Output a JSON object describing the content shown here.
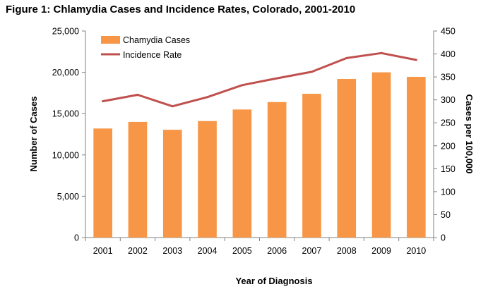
{
  "chart_data": {
    "type": "bar",
    "title": "Figure 1: Chlamydia Cases and Incidence Rates, Colorado, 2001-2010",
    "xlabel": "Year of Diagnosis",
    "ylabel": "Number of Cases",
    "y2label": "Cases per 100,000",
    "categories": [
      "2001",
      "2002",
      "2003",
      "2004",
      "2005",
      "2006",
      "2007",
      "2008",
      "2009",
      "2010"
    ],
    "ylim": [
      0,
      25000
    ],
    "y2lim": [
      0,
      450
    ],
    "y_ticks": [
      "0",
      "5,000",
      "10,000",
      "15,000",
      "20,000",
      "25,000"
    ],
    "y2_ticks": [
      "0",
      "50",
      "100",
      "150",
      "200",
      "250",
      "300",
      "350",
      "400",
      "450"
    ],
    "grid": false,
    "legend_position": "top-left",
    "series": [
      {
        "name": "Chamydia Cases",
        "type": "bar",
        "axis": "left",
        "color": "#F79646",
        "values": [
          13200,
          14000,
          13050,
          14100,
          15500,
          16400,
          17400,
          19200,
          20000,
          19450
        ]
      },
      {
        "name": "Incidence Rate",
        "type": "line",
        "axis": "right",
        "color": "#C0504D",
        "values": [
          297,
          311,
          286,
          306,
          332,
          347,
          361,
          391,
          402,
          387
        ]
      }
    ]
  }
}
